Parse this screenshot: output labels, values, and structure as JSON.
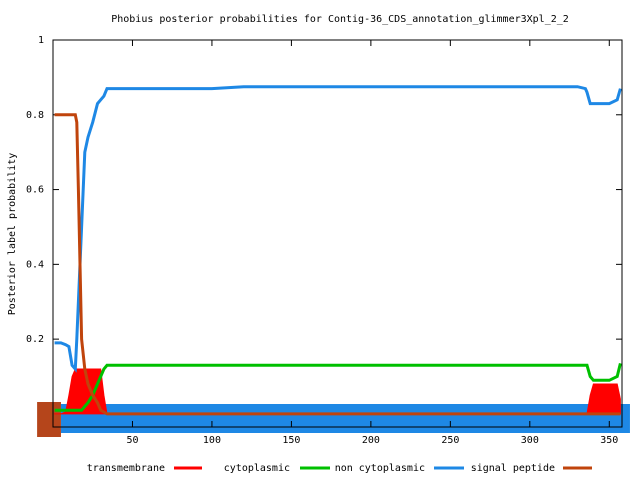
{
  "chart_data": {
    "type": "line",
    "title": "Phobius posterior probabilities for Contig-36_CDS_annotation_glimmer3Xpl_2_2",
    "y_label": "Posterior label probability",
    "x": [
      1,
      5,
      8,
      10,
      12,
      14,
      15,
      16,
      17,
      18,
      20,
      22,
      25,
      28,
      30,
      32,
      34,
      35,
      100,
      120,
      330,
      335,
      336,
      338,
      340,
      350,
      355,
      357
    ],
    "series": [
      {
        "name": "transmembrane",
        "color": "#ff0000",
        "fill": true,
        "values": [
          0,
          0,
          0.005,
          0.05,
          0.1,
          0.12,
          0.12,
          0.12,
          0.12,
          0.12,
          0.12,
          0.12,
          0.12,
          0.12,
          0.12,
          0.05,
          0,
          0,
          0,
          0,
          0,
          0,
          0,
          0.05,
          0.08,
          0.08,
          0.08,
          0.04
        ]
      },
      {
        "name": "cytoplasmic",
        "color": "#00c000",
        "values": [
          0.01,
          0.01,
          0.01,
          0.01,
          0.01,
          0.01,
          0.01,
          0.01,
          0.01,
          0.01,
          0.02,
          0.03,
          0.05,
          0.08,
          0.1,
          0.12,
          0.13,
          0.13,
          0.13,
          0.13,
          0.13,
          0.13,
          0.13,
          0.1,
          0.09,
          0.09,
          0.1,
          0.135
        ]
      },
      {
        "name": "non cytoplasmic",
        "color": "#1e88e5",
        "values": [
          0.19,
          0.19,
          0.185,
          0.18,
          0.13,
          0.12,
          0.2,
          0.3,
          0.4,
          0.5,
          0.7,
          0.74,
          0.78,
          0.83,
          0.84,
          0.85,
          0.87,
          0.87,
          0.87,
          0.875,
          0.875,
          0.87,
          0.86,
          0.83,
          0.83,
          0.83,
          0.84,
          0.87
        ]
      },
      {
        "name": "signal peptide",
        "color": "#c0440c",
        "values": [
          0.8,
          0.8,
          0.8,
          0.8,
          0.8,
          0.8,
          0.78,
          0.6,
          0.4,
          0.2,
          0.12,
          0.08,
          0.05,
          0.03,
          0.01,
          0.005,
          0,
          0,
          0,
          0,
          0,
          0,
          0,
          0,
          0,
          0,
          0,
          0
        ]
      }
    ],
    "regions": [
      {
        "color": "#1e88e5",
        "start": 5,
        "end": 363
      },
      {
        "color": "#b5451b",
        "start": -10,
        "end": 5
      }
    ],
    "xlim": [
      0,
      358
    ],
    "xticks": [
      50,
      100,
      150,
      200,
      250,
      300,
      350
    ],
    "ylim": [
      -0.035,
      1
    ],
    "yticks": [
      0.2,
      0.4,
      0.6,
      0.8,
      1
    ]
  }
}
